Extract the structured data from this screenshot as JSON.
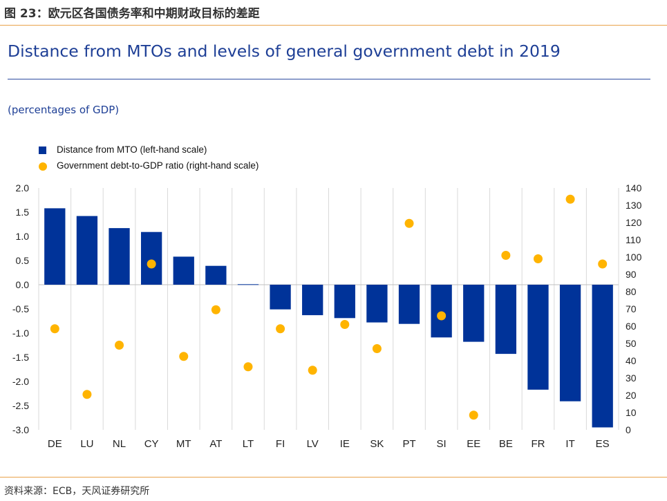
{
  "header": {
    "title": "图 23：欧元区各国债务率和中期财政目标的差距"
  },
  "chart_data": {
    "type": "bar",
    "title": "Distance from MTOs and levels of general government debt in 2019",
    "subtitle": "(percentages of GDP)",
    "categories": [
      "DE",
      "LU",
      "NL",
      "CY",
      "MT",
      "AT",
      "LT",
      "FI",
      "LV",
      "IE",
      "SK",
      "PT",
      "SI",
      "EE",
      "BE",
      "FR",
      "IT",
      "ES"
    ],
    "series": [
      {
        "name": "Distance from MTO (left-hand scale)",
        "axis": "left",
        "kind": "bar",
        "color": "#003399",
        "values": [
          1.58,
          1.42,
          1.17,
          1.09,
          0.58,
          0.39,
          0.01,
          -0.51,
          -0.63,
          -0.69,
          -0.78,
          -0.81,
          -1.09,
          -1.18,
          -1.43,
          -2.17,
          -2.41,
          -2.95
        ]
      },
      {
        "name": "Government debt-to-GDP ratio (right-hand scale)",
        "axis": "right",
        "kind": "scatter",
        "color": "#ffb400",
        "values": [
          58.5,
          20.5,
          49,
          96,
          42.5,
          69.5,
          36.5,
          58.5,
          34.5,
          61,
          47,
          119.5,
          66,
          8.5,
          101,
          99,
          133.5,
          96
        ]
      }
    ],
    "left_axis": {
      "min": -3.0,
      "max": 2.0,
      "ticks": [
        "2.0",
        "1.5",
        "1.0",
        "0.5",
        "0.0",
        "-0.5",
        "-1.0",
        "-1.5",
        "-2.0",
        "-2.5",
        "-3.0"
      ],
      "tick_values": [
        2.0,
        1.5,
        1.0,
        0.5,
        0.0,
        -0.5,
        -1.0,
        -1.5,
        -2.0,
        -2.5,
        -3.0
      ]
    },
    "right_axis": {
      "min": 0,
      "max": 140,
      "ticks": [
        "140",
        "130",
        "120",
        "110",
        "100",
        "90",
        "80",
        "70",
        "60",
        "50",
        "40",
        "30",
        "20",
        "10",
        "0"
      ],
      "tick_values": [
        140,
        130,
        120,
        110,
        100,
        90,
        80,
        70,
        60,
        50,
        40,
        30,
        20,
        10,
        0
      ]
    },
    "grid": "vertical",
    "legend": "top-left"
  },
  "source": "资料来源：ECB，天风证券研究所"
}
